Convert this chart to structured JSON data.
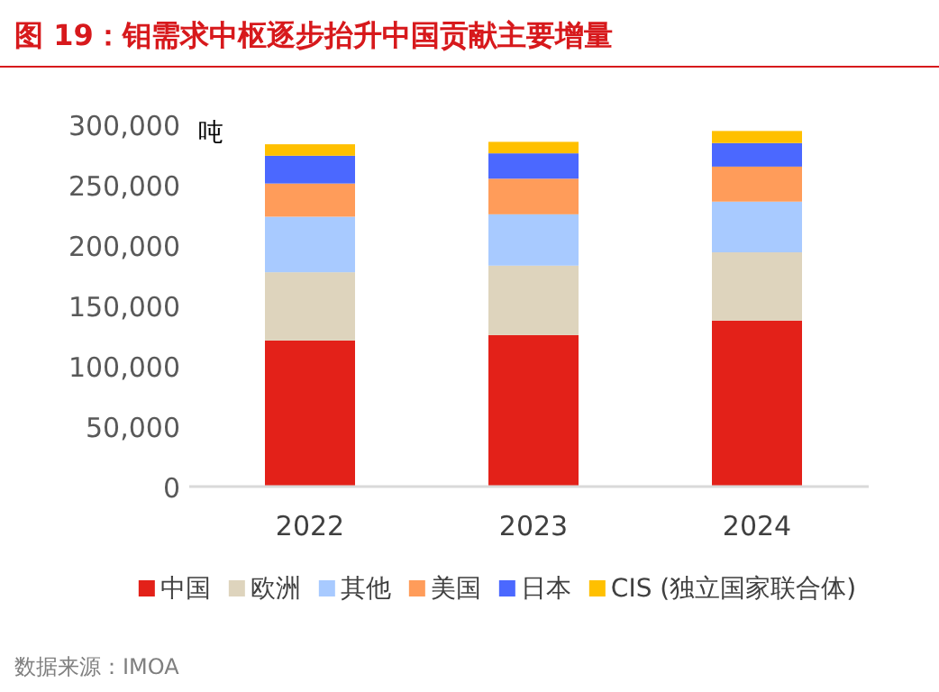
{
  "chart_data": {
    "type": "bar",
    "stacked": true,
    "title": "图 19：钼需求中枢逐步抬升中国贡献主要增量",
    "ylabel": "吨",
    "categories": [
      "2022",
      "2023",
      "2024"
    ],
    "series": [
      {
        "name": "中国",
        "color": "#e32119",
        "values": [
          121000,
          125500,
          137500
        ]
      },
      {
        "name": "欧洲",
        "color": "#ded4bd",
        "values": [
          56500,
          57500,
          56500
        ]
      },
      {
        "name": "其他",
        "color": "#a8caff",
        "values": [
          46000,
          42500,
          42000
        ]
      },
      {
        "name": "美国",
        "color": "#ff9c5a",
        "values": [
          27500,
          29500,
          29000
        ]
      },
      {
        "name": "日本",
        "color": "#4b68ff",
        "values": [
          23000,
          21000,
          19500
        ]
      },
      {
        "name": "CIS (独立国家联合体)",
        "color": "#ffc000",
        "values": [
          9500,
          9500,
          10000
        ]
      }
    ],
    "ylim": [
      0,
      300000
    ],
    "yticks": [
      {
        "value": 0,
        "label": "0"
      },
      {
        "value": 50000,
        "label": "50,000"
      },
      {
        "value": 100000,
        "label": "100,000"
      },
      {
        "value": 150000,
        "label": "150,000"
      },
      {
        "value": 200000,
        "label": "200,000"
      },
      {
        "value": 250000,
        "label": "250,000"
      },
      {
        "value": 300000,
        "label": "300,000"
      }
    ],
    "legend": "bottom",
    "annotations": [
      "数据来源：IMOA"
    ]
  }
}
